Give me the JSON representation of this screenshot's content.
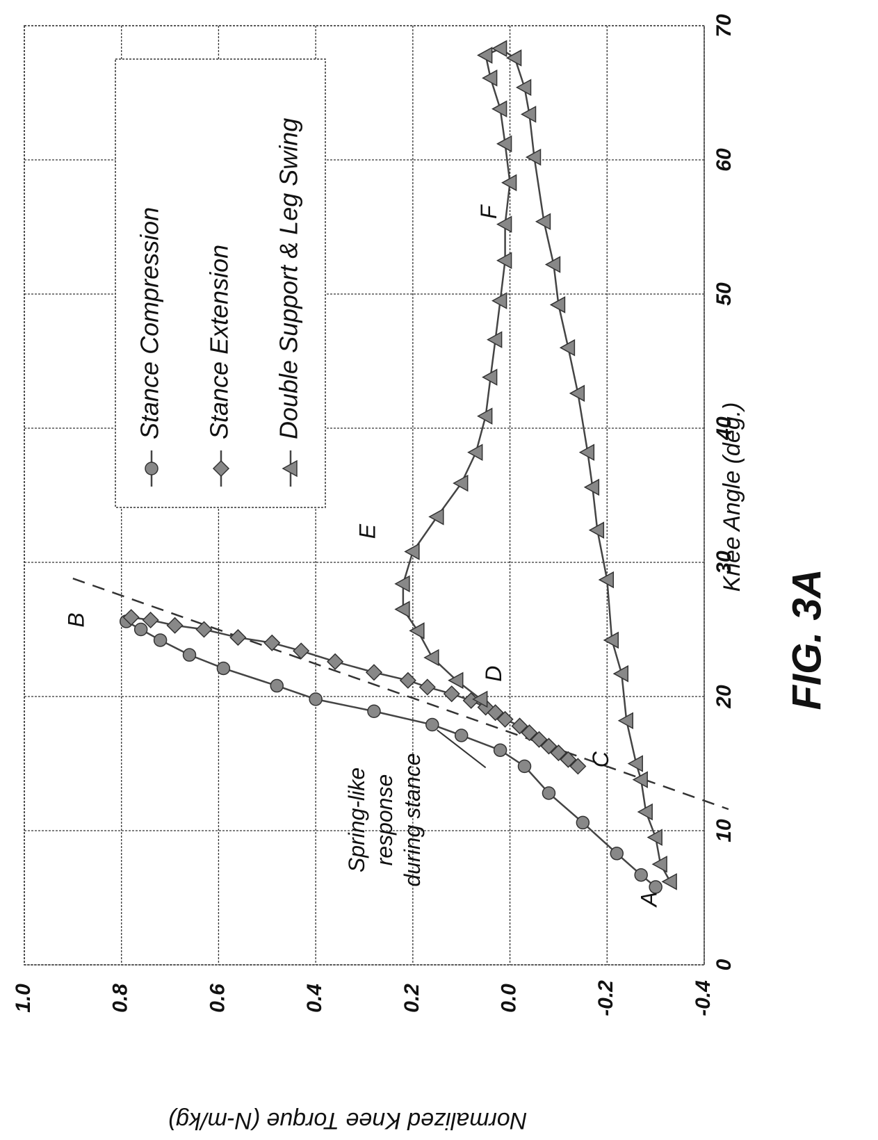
{
  "figure_label": "FIG. 3A",
  "chart_data": {
    "type": "line",
    "xlabel": "Knee Angle (deg.)",
    "ylabel": "Normalized Knee Torque (N-m/kg)",
    "xlim": [
      0,
      70
    ],
    "ylim": [
      -0.4,
      1.0
    ],
    "xticks": [
      "0",
      "10",
      "20",
      "30",
      "40",
      "50",
      "60",
      "70"
    ],
    "yticks": [
      "1.0",
      "0.8",
      "0.6",
      "0.4",
      "0.2",
      "0.0",
      "-0.2",
      "-0.4"
    ],
    "grid": true,
    "legend_position": "top-left",
    "series": [
      {
        "name": "Stance Compression",
        "marker": "circle",
        "points": [
          [
            5.8,
            -0.3
          ],
          [
            6.7,
            -0.27
          ],
          [
            8.3,
            -0.22
          ],
          [
            10.6,
            -0.15
          ],
          [
            12.8,
            -0.08
          ],
          [
            14.8,
            -0.03
          ],
          [
            16,
            0.02
          ],
          [
            17.1,
            0.1
          ],
          [
            17.9,
            0.16
          ],
          [
            18.9,
            0.28
          ],
          [
            19.8,
            0.4
          ],
          [
            20.8,
            0.48
          ],
          [
            22.1,
            0.59
          ],
          [
            23.1,
            0.66
          ],
          [
            24.2,
            0.72
          ],
          [
            25,
            0.76
          ],
          [
            25.6,
            0.79
          ]
        ]
      },
      {
        "name": "Stance Extension",
        "marker": "diamond",
        "points": [
          [
            25.9,
            0.78
          ],
          [
            25.7,
            0.74
          ],
          [
            25.3,
            0.69
          ],
          [
            25,
            0.63
          ],
          [
            24.4,
            0.56
          ],
          [
            24,
            0.49
          ],
          [
            23.4,
            0.43
          ],
          [
            22.6,
            0.36
          ],
          [
            21.8,
            0.28
          ],
          [
            21.2,
            0.21
          ],
          [
            20.7,
            0.17
          ],
          [
            20.2,
            0.12
          ],
          [
            19.7,
            0.08
          ],
          [
            19.2,
            0.05
          ],
          [
            18.8,
            0.03
          ],
          [
            18.3,
            0.01
          ],
          [
            17.8,
            -0.02
          ],
          [
            17.3,
            -0.04
          ],
          [
            16.8,
            -0.06
          ],
          [
            16.3,
            -0.08
          ],
          [
            15.8,
            -0.1
          ],
          [
            15.3,
            -0.12
          ],
          [
            14.8,
            -0.14
          ]
        ]
      },
      {
        "name": "Double Support & Leg Swing",
        "marker": "triangle",
        "points": [
          [
            19.8,
            0.06
          ],
          [
            21.2,
            0.11
          ],
          [
            22.9,
            0.16
          ],
          [
            24.9,
            0.19
          ],
          [
            26.5,
            0.22
          ],
          [
            28.4,
            0.22
          ],
          [
            30.8,
            0.2
          ],
          [
            33.4,
            0.15
          ],
          [
            35.9,
            0.1
          ],
          [
            38.2,
            0.07
          ],
          [
            40.9,
            0.05
          ],
          [
            43.8,
            0.04
          ],
          [
            46.6,
            0.03
          ],
          [
            49.5,
            0.02
          ],
          [
            52.5,
            0.01
          ],
          [
            55.2,
            0.01
          ],
          [
            58.3,
            0.0
          ],
          [
            61.2,
            0.01
          ],
          [
            63.8,
            0.02
          ],
          [
            66.1,
            0.04
          ],
          [
            67.8,
            0.05
          ],
          [
            68.3,
            0.02
          ],
          [
            67.6,
            -0.01
          ],
          [
            65.4,
            -0.03
          ],
          [
            63.4,
            -0.04
          ],
          [
            60.2,
            -0.05
          ],
          [
            55.4,
            -0.07
          ],
          [
            52.2,
            -0.09
          ],
          [
            49.2,
            -0.1
          ],
          [
            46,
            -0.12
          ],
          [
            42.6,
            -0.14
          ],
          [
            38.2,
            -0.16
          ],
          [
            35.6,
            -0.17
          ],
          [
            32.4,
            -0.18
          ],
          [
            28.7,
            -0.2
          ],
          [
            24.2,
            -0.21
          ],
          [
            21.7,
            -0.23
          ],
          [
            18.2,
            -0.24
          ],
          [
            15,
            -0.26
          ],
          [
            13.8,
            -0.27
          ],
          [
            11.4,
            -0.28
          ],
          [
            9.5,
            -0.3
          ],
          [
            7.5,
            -0.31
          ],
          [
            6.2,
            -0.33
          ]
        ]
      }
    ],
    "reference_line": {
      "x": [
        28.8,
        11.6
      ],
      "y": [
        0.9,
        -0.45
      ]
    },
    "point_labels": [
      {
        "text": "A",
        "x": 4.9,
        "y": -0.29
      },
      {
        "text": "B",
        "x": 25.7,
        "y": 0.89
      },
      {
        "text": "C",
        "x": 15.3,
        "y": -0.19
      },
      {
        "text": "D",
        "x": 21.7,
        "y": 0.03
      },
      {
        "text": "E",
        "x": 32.3,
        "y": 0.29
      },
      {
        "text": "F",
        "x": 56.1,
        "y": 0.04
      }
    ],
    "annotation": {
      "lines": [
        "Spring-like",
        "response",
        "during stance"
      ],
      "x": 10.8,
      "y": 0.3,
      "pointer_from": [
        14.7,
        0.05
      ],
      "pointer_to": [
        17.5,
        0.15
      ]
    }
  }
}
